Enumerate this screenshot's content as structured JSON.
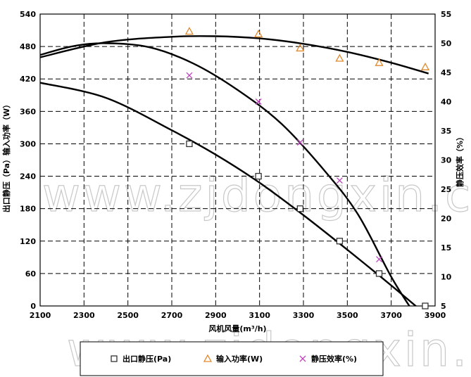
{
  "chart_data": {
    "type": "scatter",
    "xlabel": "风机风量(m³/h)",
    "ylabel_left": "出口静压（Pa）输入功率（W）",
    "ylabel_right": "静压效率（%）",
    "xlim": [
      2100,
      3900
    ],
    "ylim_left": [
      0,
      540
    ],
    "ylim_right": [
      5,
      55
    ],
    "x_ticks": [
      "2100",
      "2300",
      "2500",
      "2700",
      "2900",
      "3100",
      "3300",
      "3500",
      "3700",
      "3900"
    ],
    "y_left_ticks": [
      "0",
      "60",
      "120",
      "180",
      "240",
      "300",
      "360",
      "420",
      "480",
      "540"
    ],
    "y_right_ticks": [
      "5",
      "10",
      "15",
      "20",
      "25",
      "30",
      "35",
      "40",
      "45",
      "50",
      "55"
    ],
    "grid": true,
    "legend_position": "bottom",
    "series": [
      {
        "name": "出口静压(Pa)",
        "axis": "left",
        "marker": "square",
        "color": "#333333",
        "x": [
          2780,
          3095,
          3285,
          3465,
          3645,
          3855
        ],
        "y": [
          300,
          240,
          180,
          120,
          60,
          0
        ]
      },
      {
        "name": "输入功率(W)",
        "axis": "left",
        "marker": "triangle",
        "color": "#e08a2e",
        "x": [
          2780,
          3095,
          3285,
          3465,
          3645,
          3855
        ],
        "y": [
          508,
          503,
          477,
          458,
          450,
          442
        ]
      },
      {
        "name": "静压效率(%)",
        "axis": "right",
        "marker": "x",
        "color": "#c040c0",
        "x": [
          2780,
          3095,
          3285,
          3465,
          3645
        ],
        "y": [
          44.5,
          40,
          33,
          26.5,
          13
        ]
      }
    ],
    "fit_curves": [
      {
        "axis": "left",
        "x": [
          2100,
          2400,
          2700,
          2900,
          3100,
          3300,
          3500,
          3700,
          3870
        ],
        "y": [
          413,
          385,
          325,
          280,
          228,
          168,
          104,
          38,
          -20
        ]
      },
      {
        "axis": "left",
        "x": [
          2100,
          2400,
          2700,
          2900,
          3100,
          3300,
          3500,
          3700,
          3870
        ],
        "y": [
          460,
          488,
          498,
          499,
          495,
          485,
          470,
          450,
          430
        ]
      },
      {
        "axis": "right",
        "x": [
          2100,
          2250,
          2400,
          2600,
          2800,
          3000,
          3200,
          3400,
          3550,
          3700,
          3800
        ],
        "y": [
          48,
          49.5,
          50,
          49.3,
          46.5,
          42,
          36.2,
          28,
          20.6,
          10,
          4
        ]
      }
    ]
  },
  "legend": {
    "items": [
      {
        "label": "出口静压(Pa)",
        "marker": "square",
        "color": "#333333"
      },
      {
        "label": "输入功率(W)",
        "marker": "triangle",
        "color": "#e08a2e"
      },
      {
        "label": "静压效率(%)",
        "marker": "x",
        "color": "#c040c0"
      }
    ]
  },
  "watermark": {
    "text": "www.zjdongxin.com"
  }
}
